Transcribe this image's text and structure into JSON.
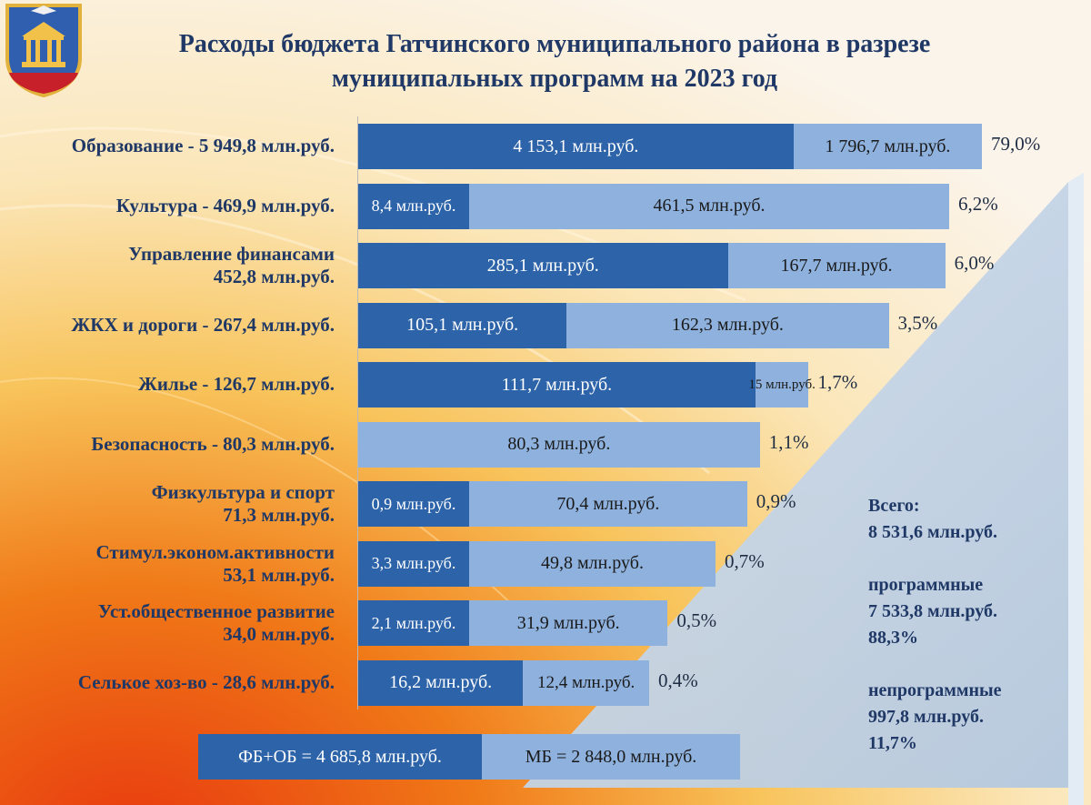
{
  "title": {
    "line1": "Расходы бюджета Гатчинского муниципального района в разрезе",
    "line2": "муниципальных программ на 2023 год"
  },
  "colors": {
    "federal_regional": "#2d63a8",
    "municipal": "#8eb1dd",
    "text": "#1f3866"
  },
  "chart_data": {
    "type": "bar",
    "orientation": "horizontal",
    "stacked": true,
    "unit": "млн.руб.",
    "x_axis_max": 6000,
    "series": [
      {
        "name": "ФБ+ОБ = 4 685,8 млн.руб."
      },
      {
        "name": "МБ = 2 848,0 млн.руб."
      }
    ],
    "programs": [
      {
        "label_lines": [
          "Образование  - 5 949,8 млн.руб."
        ],
        "total": 5949.8,
        "fed": 4153.1,
        "fed_label": "4 153,1 млн.руб.",
        "mun": 1796.7,
        "mun_label": "1 796,7 млн.руб.",
        "share": "79,0%"
      },
      {
        "label_lines": [
          "Культура  - 469,9 млн.руб."
        ],
        "total": 469.9,
        "fed": 8.4,
        "fed_label": "8,4 млн.руб.",
        "mun": 461.5,
        "mun_label": "461,5 млн.руб.",
        "share": "6,2%"
      },
      {
        "label_lines": [
          "Управление финансами",
          "452,8 млн.руб."
        ],
        "total": 452.8,
        "fed": 285.1,
        "fed_label": "285,1 млн.руб.",
        "mun": 167.7,
        "mun_label": "167,7 млн.руб.",
        "share": "6,0%"
      },
      {
        "label_lines": [
          "ЖКХ и дороги - 267,4 млн.руб."
        ],
        "total": 267.4,
        "fed": 105.1,
        "fed_label": "105,1 млн.руб.",
        "mun": 162.3,
        "mun_label": "162,3 млн.руб.",
        "share": "3,5%"
      },
      {
        "label_lines": [
          "Жилье - 126,7 млн.руб."
        ],
        "total": 126.7,
        "fed": 111.7,
        "fed_label": "111,7 млн.руб.",
        "mun": 15.0,
        "mun_label": "15 млн.руб.",
        "share": "1,7%"
      },
      {
        "label_lines": [
          "Безопасность - 80,3 млн.руб."
        ],
        "total": 80.3,
        "fed": 0,
        "fed_label": "",
        "mun": 80.3,
        "mun_label": "80,3 млн.руб.",
        "share": "1,1%"
      },
      {
        "label_lines": [
          "Физкультура  и  спорт",
          "71,3 млн.руб."
        ],
        "total": 71.3,
        "fed": 0.9,
        "fed_label": "0,9 млн.руб.",
        "mun": 70.4,
        "mun_label": "70,4 млн.руб.",
        "share": "0,9%"
      },
      {
        "label_lines": [
          "Стимул.эконом.активности",
          "53,1 млн.руб."
        ],
        "total": 53.1,
        "fed": 3.3,
        "fed_label": "3,3 млн.руб.",
        "mun": 49.8,
        "mun_label": "49,8 млн.руб.",
        "share": "0,7%"
      },
      {
        "label_lines": [
          "Уст.общественное  развитие",
          "34,0 млн.руб."
        ],
        "total": 34.0,
        "fed": 2.1,
        "fed_label": "2,1 млн.руб.",
        "mun": 31.9,
        "mun_label": "31,9 млн.руб.",
        "share": "0,5%"
      },
      {
        "label_lines": [
          "Селькое хоз-во - 28,6 млн.руб."
        ],
        "total": 28.6,
        "fed": 16.2,
        "fed_label": "16,2 млн.руб.",
        "mun": 12.4,
        "mun_label": "12,4 млн.руб.",
        "share": "0,4%"
      }
    ]
  },
  "summary": {
    "total_label": "Всего:",
    "total_value": "8 531,6 млн.руб.",
    "prog_label": "программные",
    "prog_value": "7 533,8 млн.руб.",
    "prog_pct": "88,3%",
    "nonprog_label": "непрограммные",
    "nonprog_value": "997,8 млн.руб.",
    "nonprog_pct": "11,7%"
  },
  "legend": {
    "fed": "ФБ+ОБ = 4 685,8 млн.руб.",
    "mun": "МБ = 2 848,0 млн.руб."
  }
}
